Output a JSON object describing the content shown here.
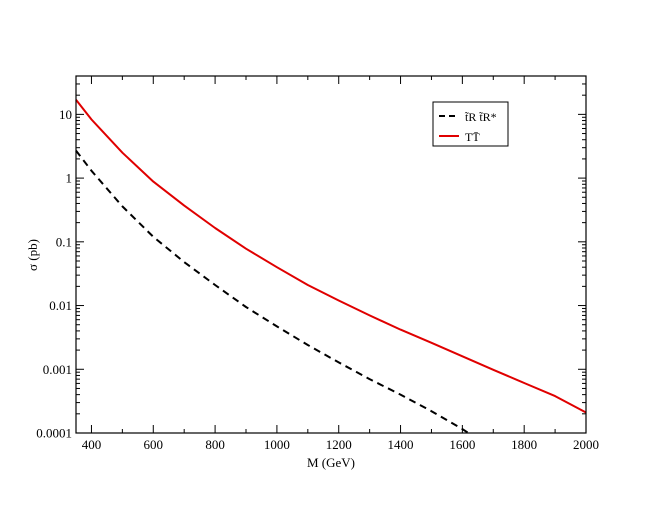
{
  "chart_data": {
    "type": "line",
    "title": "",
    "xlabel": "M (GeV)",
    "ylabel": "σ (pb)",
    "xlim": [
      350,
      2000
    ],
    "ylim": [
      0.0001,
      40
    ],
    "yscale": "log",
    "grid": false,
    "legend_position": "top-right",
    "x_ticks": [
      400,
      600,
      800,
      1000,
      1200,
      1400,
      1600,
      1800,
      2000
    ],
    "x_tick_labels": [
      "400",
      "600",
      "800",
      "1000",
      "1200",
      "1400",
      "1600",
      "1800",
      "2000"
    ],
    "y_ticks": [
      0.0001,
      0.001,
      0.01,
      0.1,
      1,
      10
    ],
    "y_tick_labels": [
      "0.0001",
      "0.001",
      "0.01",
      "0.1",
      "1",
      "10"
    ],
    "series": [
      {
        "name": "t̃R t̃R*",
        "color": "#000000",
        "style": "dashed",
        "x": [
          350,
          400,
          500,
          600,
          700,
          800,
          900,
          1000,
          1100,
          1200,
          1300,
          1400,
          1500,
          1600,
          1620
        ],
        "y": [
          2.7,
          1.3,
          0.36,
          0.12,
          0.048,
          0.021,
          0.0095,
          0.0047,
          0.0024,
          0.00128,
          0.0007,
          0.0004,
          0.00022,
          0.000115,
          0.0001
        ]
      },
      {
        "name": "TT̄",
        "color": "#e00000",
        "style": "solid",
        "x": [
          350,
          400,
          500,
          600,
          700,
          800,
          900,
          1000,
          1100,
          1200,
          1300,
          1400,
          1500,
          1600,
          1700,
          1800,
          1900,
          2000
        ],
        "y": [
          17,
          8.3,
          2.5,
          0.88,
          0.37,
          0.165,
          0.078,
          0.04,
          0.021,
          0.012,
          0.007,
          0.0042,
          0.0026,
          0.0016,
          0.00098,
          0.00061,
          0.00038,
          0.00021
        ]
      }
    ]
  }
}
